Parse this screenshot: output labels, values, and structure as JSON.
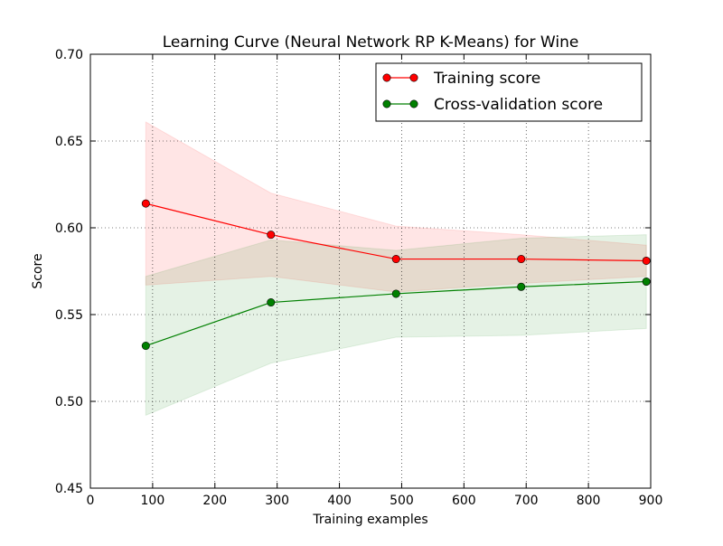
{
  "chart_data": {
    "type": "line",
    "title": "Learning Curve (Neural Network RP K-Means) for Wine",
    "xlabel": "Training examples",
    "ylabel": "Score",
    "xlim": [
      0,
      900
    ],
    "ylim": [
      0.45,
      0.7
    ],
    "xticks": [
      0,
      100,
      200,
      300,
      400,
      500,
      600,
      700,
      800,
      900
    ],
    "xtick_labels": [
      "0",
      "100",
      "200",
      "300",
      "400",
      "500",
      "600",
      "700",
      "800",
      "900"
    ],
    "yticks": [
      0.45,
      0.5,
      0.55,
      0.6,
      0.65,
      0.7
    ],
    "ytick_labels": [
      "0.45",
      "0.50",
      "0.55",
      "0.60",
      "0.65",
      "0.70"
    ],
    "grid": true,
    "legend_position": "top-right",
    "x": [
      89,
      290,
      491,
      692,
      893
    ],
    "series": [
      {
        "name": "Training score",
        "color": "#ff0000",
        "band_color": "#ff0000",
        "values": [
          0.614,
          0.596,
          0.582,
          0.582,
          0.581
        ],
        "band_upper": [
          0.661,
          0.62,
          0.601,
          0.596,
          0.59
        ],
        "band_lower": [
          0.567,
          0.572,
          0.563,
          0.568,
          0.572
        ]
      },
      {
        "name": "Cross-validation score",
        "color": "#008000",
        "band_color": "#008000",
        "values": [
          0.532,
          0.557,
          0.562,
          0.566,
          0.569
        ],
        "band_upper": [
          0.572,
          0.593,
          0.587,
          0.594,
          0.596
        ],
        "band_lower": [
          0.492,
          0.522,
          0.537,
          0.538,
          0.542
        ]
      }
    ]
  }
}
